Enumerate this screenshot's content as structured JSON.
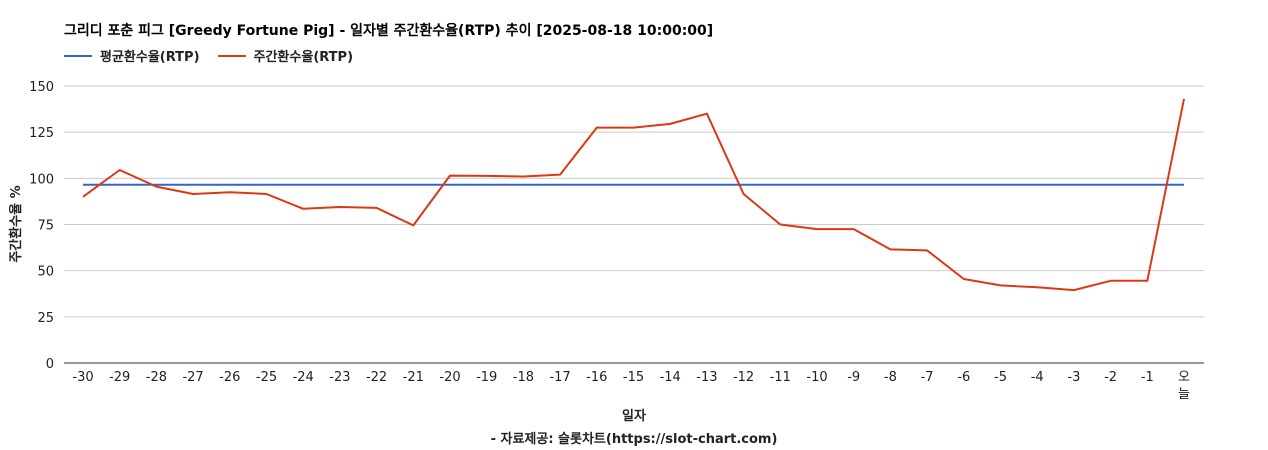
{
  "chart_data": {
    "type": "line",
    "title": "그리디 포춘 피그 [Greedy Fortune Pig] - 일자별 주간환수율(RTP) 추이 [2025-08-18 10:00:00]",
    "xlabel": "일자",
    "ylabel": "주간환수율 %",
    "source": "- 자료제공: 슬롯차트(https://slot-chart.com)",
    "ylim": [
      0,
      150
    ],
    "yticks": [
      0,
      25,
      50,
      75,
      100,
      125,
      150
    ],
    "grid": true,
    "legend_position": "top-left",
    "categories": [
      "-30",
      "-29",
      "-28",
      "-27",
      "-26",
      "-25",
      "-24",
      "-23",
      "-22",
      "-21",
      "-20",
      "-19",
      "-18",
      "-17",
      "-16",
      "-15",
      "-14",
      "-13",
      "-12",
      "-11",
      "-10",
      "-9",
      "-8",
      "-7",
      "-6",
      "-5",
      "-4",
      "-3",
      "-2",
      "-1",
      "오늘"
    ],
    "series": [
      {
        "name": "평균환수율(RTP)",
        "color": "#3366cc",
        "values": [
          96.5,
          96.5,
          96.5,
          96.5,
          96.5,
          96.5,
          96.5,
          96.5,
          96.5,
          96.5,
          96.5,
          96.5,
          96.5,
          96.5,
          96.5,
          96.5,
          96.5,
          96.5,
          96.5,
          96.5,
          96.5,
          96.5,
          96.5,
          96.5,
          96.5,
          96.5,
          96.5,
          96.5,
          96.5,
          96.5,
          96.5
        ]
      },
      {
        "name": "주간환수율(RTP)",
        "color": "#dc3912",
        "values": [
          90,
          104.5,
          95.5,
          91.5,
          92.5,
          91.5,
          83.5,
          84.5,
          84,
          74.5,
          101.5,
          101.3,
          101,
          102,
          127.5,
          127.5,
          129.5,
          135,
          91.5,
          75,
          72.5,
          72.5,
          61.5,
          61,
          45.5,
          42,
          41,
          39.5,
          44.5,
          44.5,
          143
        ]
      }
    ]
  }
}
